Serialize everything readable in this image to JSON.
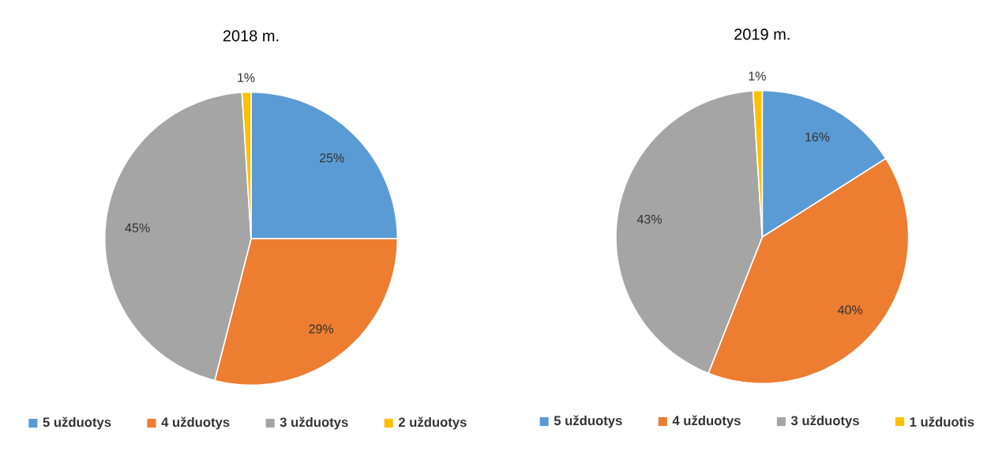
{
  "chart_data": [
    {
      "type": "pie",
      "title": "2018 m.",
      "categories": [
        "5 užduotys",
        "4 užduotys",
        "3 užduotys",
        "2 užduotys"
      ],
      "values": [
        25,
        29,
        45,
        1
      ],
      "colors": [
        "#5b9bd5",
        "#ed7d31",
        "#a5a5a5",
        "#ffc000"
      ],
      "value_labels": [
        "25%",
        "29%",
        "45%",
        "1%"
      ],
      "legend": "bottom"
    },
    {
      "type": "pie",
      "title": "2019 m.",
      "categories": [
        "5 užduotys",
        "4 užduotys",
        "3 užduotys",
        "1 užduotis"
      ],
      "values": [
        16,
        40,
        43,
        1
      ],
      "colors": [
        "#5b9bd5",
        "#ed7d31",
        "#a5a5a5",
        "#ffc000"
      ],
      "value_labels": [
        "16%",
        "40%",
        "43%",
        "1%"
      ],
      "legend": "bottom"
    }
  ]
}
